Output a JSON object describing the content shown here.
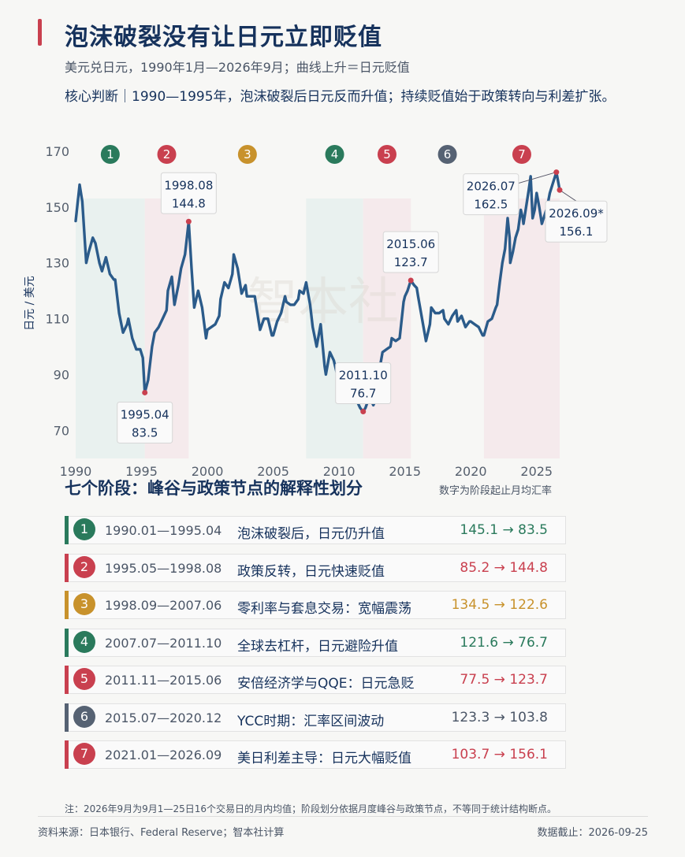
{
  "title": "泡沫破裂没有让日元立即贬值",
  "subtitle": "美元兑日元，1990年1月—2026年9月；曲线上升＝日元贬值",
  "core_judgment": "核心判断｜1990—1995年，泡沫破裂后日元反而升值；持续贬值始于政策转向与利差扩张。",
  "watermark": "智本社",
  "colors": {
    "line": "#2b5b8a",
    "green": "#2a7a5c",
    "red": "#c9404f",
    "gold": "#c8922c",
    "slate": "#566273",
    "marker": "#c9404f"
  },
  "chart_data": {
    "type": "line",
    "ylabel": "日元 / 美元",
    "ylim": [
      65,
      170
    ],
    "xlim": [
      1990.0,
      2026.75
    ],
    "yticks": [
      "70",
      "90",
      "110",
      "130",
      "150",
      "170"
    ],
    "xticks": [
      "1990",
      "1995",
      "2000",
      "2005",
      "2010",
      "2015",
      "2020",
      "2025"
    ],
    "series": [
      {
        "points": [
          [
            1990.0,
            145
          ],
          [
            1990.3,
            158
          ],
          [
            1990.5,
            152
          ],
          [
            1990.8,
            130
          ],
          [
            1991.0,
            134
          ],
          [
            1991.3,
            139
          ],
          [
            1991.5,
            137
          ],
          [
            1991.8,
            130
          ],
          [
            1992.0,
            127
          ],
          [
            1992.3,
            132
          ],
          [
            1992.6,
            126
          ],
          [
            1992.9,
            124
          ],
          [
            1993.0,
            124
          ],
          [
            1993.3,
            112
          ],
          [
            1993.6,
            105
          ],
          [
            1993.9,
            108
          ],
          [
            1994.0,
            110
          ],
          [
            1994.3,
            103
          ],
          [
            1994.6,
            99
          ],
          [
            1994.9,
            99
          ],
          [
            1995.1,
            96
          ],
          [
            1995.25,
            83.5
          ],
          [
            1995.5,
            88
          ],
          [
            1995.8,
            100
          ],
          [
            1996.0,
            105
          ],
          [
            1996.3,
            107
          ],
          [
            1996.6,
            110
          ],
          [
            1996.9,
            113
          ],
          [
            1997.0,
            120
          ],
          [
            1997.3,
            125
          ],
          [
            1997.5,
            115
          ],
          [
            1997.8,
            122
          ],
          [
            1998.0,
            128
          ],
          [
            1998.3,
            133
          ],
          [
            1998.58,
            144.8
          ],
          [
            1998.8,
            128
          ],
          [
            1999.0,
            114
          ],
          [
            1999.3,
            120
          ],
          [
            1999.6,
            114
          ],
          [
            1999.9,
            103
          ],
          [
            2000.0,
            106
          ],
          [
            2000.3,
            107
          ],
          [
            2000.6,
            108
          ],
          [
            2000.9,
            111
          ],
          [
            2001.0,
            117
          ],
          [
            2001.3,
            123
          ],
          [
            2001.6,
            121
          ],
          [
            2001.9,
            126
          ],
          [
            2002.0,
            133
          ],
          [
            2002.3,
            128
          ],
          [
            2002.6,
            119
          ],
          [
            2002.9,
            122
          ],
          [
            2003.0,
            118
          ],
          [
            2003.3,
            118
          ],
          [
            2003.6,
            118
          ],
          [
            2003.9,
            109
          ],
          [
            2004.0,
            106
          ],
          [
            2004.3,
            110
          ],
          [
            2004.6,
            110
          ],
          [
            2004.9,
            104
          ],
          [
            2005.0,
            104
          ],
          [
            2005.3,
            109
          ],
          [
            2005.6,
            112
          ],
          [
            2005.9,
            118
          ],
          [
            2006.0,
            116
          ],
          [
            2006.3,
            115
          ],
          [
            2006.6,
            115
          ],
          [
            2006.9,
            117
          ],
          [
            2007.0,
            120
          ],
          [
            2007.3,
            119
          ],
          [
            2007.5,
            123
          ],
          [
            2007.8,
            115
          ],
          [
            2008.0,
            107
          ],
          [
            2008.3,
            100
          ],
          [
            2008.6,
            108
          ],
          [
            2008.9,
            93
          ],
          [
            2009.0,
            90
          ],
          [
            2009.3,
            98
          ],
          [
            2009.6,
            95
          ],
          [
            2009.9,
            89
          ],
          [
            2010.0,
            91
          ],
          [
            2010.3,
            93
          ],
          [
            2010.6,
            86
          ],
          [
            2010.9,
            82
          ],
          [
            2011.0,
            83
          ],
          [
            2011.3,
            81
          ],
          [
            2011.6,
            78
          ],
          [
            2011.83,
            76.7
          ],
          [
            2012.0,
            78
          ],
          [
            2012.3,
            82
          ],
          [
            2012.6,
            79
          ],
          [
            2012.9,
            82
          ],
          [
            2013.0,
            90
          ],
          [
            2013.3,
            98
          ],
          [
            2013.6,
            99
          ],
          [
            2013.9,
            100
          ],
          [
            2014.0,
            103
          ],
          [
            2014.3,
            102
          ],
          [
            2014.6,
            103
          ],
          [
            2014.9,
            116
          ],
          [
            2015.0,
            118
          ],
          [
            2015.2,
            120
          ],
          [
            2015.45,
            123.7
          ],
          [
            2015.7,
            122
          ],
          [
            2015.9,
            121
          ],
          [
            2016.0,
            118
          ],
          [
            2016.3,
            110
          ],
          [
            2016.6,
            102
          ],
          [
            2016.9,
            108
          ],
          [
            2017.0,
            114
          ],
          [
            2017.3,
            112
          ],
          [
            2017.6,
            112
          ],
          [
            2017.9,
            113
          ],
          [
            2018.0,
            110
          ],
          [
            2018.3,
            108
          ],
          [
            2018.6,
            111
          ],
          [
            2018.9,
            113
          ],
          [
            2019.0,
            109
          ],
          [
            2019.3,
            111
          ],
          [
            2019.6,
            107
          ],
          [
            2019.9,
            109
          ],
          [
            2020.0,
            109
          ],
          [
            2020.3,
            108
          ],
          [
            2020.6,
            107
          ],
          [
            2020.9,
            104
          ],
          [
            2021.0,
            104
          ],
          [
            2021.3,
            109
          ],
          [
            2021.6,
            110
          ],
          [
            2021.9,
            114
          ],
          [
            2022.0,
            115
          ],
          [
            2022.2,
            123
          ],
          [
            2022.4,
            130
          ],
          [
            2022.6,
            135
          ],
          [
            2022.8,
            146
          ],
          [
            2022.95,
            139
          ],
          [
            2023.0,
            130
          ],
          [
            2023.2,
            134
          ],
          [
            2023.4,
            139
          ],
          [
            2023.6,
            142
          ],
          [
            2023.8,
            149
          ],
          [
            2023.95,
            146
          ],
          [
            2024.0,
            144
          ],
          [
            2024.2,
            150
          ],
          [
            2024.4,
            156
          ],
          [
            2024.55,
            161
          ],
          [
            2024.7,
            146
          ],
          [
            2024.85,
            149
          ],
          [
            2025.0,
            155
          ],
          [
            2025.2,
            150
          ],
          [
            2025.4,
            144
          ],
          [
            2025.6,
            147
          ],
          [
            2025.8,
            150
          ],
          [
            2026.0,
            155
          ],
          [
            2026.2,
            158
          ],
          [
            2026.5,
            162.5
          ],
          [
            2026.6,
            160
          ],
          [
            2026.75,
            156.1
          ]
        ]
      }
    ],
    "phases": [
      {
        "num": "1",
        "start": 1990.0,
        "end": 1995.25,
        "color": "green",
        "fill": "#e4efec"
      },
      {
        "num": "2",
        "start": 1995.25,
        "end": 1998.58,
        "color": "red",
        "fill": "#f4e6e8"
      },
      {
        "num": "3",
        "start": 1998.58,
        "end": 2007.5,
        "color": "gold",
        "fill": "none"
      },
      {
        "num": "4",
        "start": 2007.5,
        "end": 2011.83,
        "color": "green",
        "fill": "#e4efec"
      },
      {
        "num": "5",
        "start": 2011.83,
        "end": 2015.45,
        "color": "red",
        "fill": "#f4e6e8"
      },
      {
        "num": "6",
        "start": 2015.45,
        "end": 2021.0,
        "color": "slate",
        "fill": "none"
      },
      {
        "num": "7",
        "start": 2021.0,
        "end": 2026.75,
        "color": "red",
        "fill": "#f4e6e8"
      }
    ],
    "annotations": [
      {
        "date": "1995.04",
        "value": "83.5",
        "x": 1995.25,
        "y": 83.5,
        "pos": "below"
      },
      {
        "date": "1998.08",
        "value": "144.8",
        "x": 1998.58,
        "y": 144.8,
        "pos": "above"
      },
      {
        "date": "2011.10",
        "value": "76.7",
        "x": 2011.83,
        "y": 76.7,
        "pos": "above"
      },
      {
        "date": "2015.06",
        "value": "123.7",
        "x": 2015.45,
        "y": 123.7,
        "pos": "above"
      },
      {
        "date": "2026.07",
        "value": "162.5",
        "x": 2026.5,
        "y": 162.5,
        "pos": "left"
      },
      {
        "date": "2026.09*",
        "value": "156.1",
        "x": 2026.75,
        "y": 156.1,
        "pos": "below-right"
      }
    ]
  },
  "section": {
    "title": "七个阶段：峰谷与政策节点的解释性划分",
    "note": "数字为阶段起止月均汇率"
  },
  "phases_table": [
    {
      "num": "1",
      "period": "1990.01—1995.04",
      "desc": "泡沫破裂后，日元仍升值",
      "range": "145.1 → 83.5",
      "color": "green"
    },
    {
      "num": "2",
      "period": "1995.05—1998.08",
      "desc": "政策反转，日元快速贬值",
      "range": "85.2 → 144.8",
      "color": "red"
    },
    {
      "num": "3",
      "period": "1998.09—2007.06",
      "desc": "零利率与套息交易：宽幅震荡",
      "range": "134.5 → 122.6",
      "color": "gold"
    },
    {
      "num": "4",
      "period": "2007.07—2011.10",
      "desc": "全球去杠杆，日元避险升值",
      "range": "121.6 → 76.7",
      "color": "green"
    },
    {
      "num": "5",
      "period": "2011.11—2015.06",
      "desc": "安倍经济学与QQE：日元急贬",
      "range": "77.5 → 123.7",
      "color": "red"
    },
    {
      "num": "6",
      "period": "2015.07—2020.12",
      "desc": "YCC时期：汇率区间波动",
      "range": "123.3 → 103.8",
      "color": "slate"
    },
    {
      "num": "7",
      "period": "2021.01—2026.09",
      "desc": "美日利差主导：日元大幅贬值",
      "range": "103.7 → 156.1",
      "color": "red"
    }
  ],
  "footnote": "注：2026年9月为9月1—25日16个交易日的月内均值；阶段划分依据月度峰谷与政策节点，不等同于统计结构断点。",
  "source": "资料来源：日本银行、Federal Reserve；智本社计算",
  "as_of": "数据截止：2026-09-25"
}
